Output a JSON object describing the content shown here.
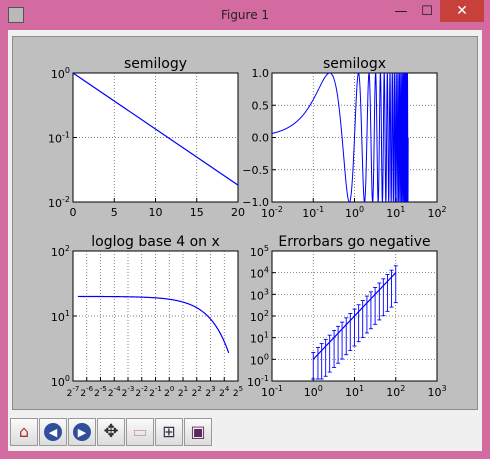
{
  "window": {
    "title": "Figure 1",
    "minimize_glyph": "—",
    "maximize_glyph": "☐",
    "close_glyph": "✕"
  },
  "toolbar": {
    "buttons": [
      {
        "name": "home",
        "icon": "home-icon",
        "glyph": "⌂"
      },
      {
        "name": "back",
        "icon": "back-arrow-icon",
        "glyph": "◀"
      },
      {
        "name": "forward",
        "icon": "forward-arrow-icon",
        "glyph": "▶"
      },
      {
        "name": "pan",
        "icon": "pan-arrows-icon",
        "glyph": "✥"
      },
      {
        "name": "zoom",
        "icon": "zoom-rect-icon",
        "glyph": "▭"
      },
      {
        "name": "subplots",
        "icon": "subplots-config-icon",
        "glyph": "⊞"
      },
      {
        "name": "save",
        "icon": "floppy-disk-icon",
        "glyph": "▣"
      }
    ]
  },
  "chart_data": [
    {
      "type": "line",
      "title": "semilogy",
      "x_scale": "linear",
      "y_scale": "log",
      "xlim": [
        0,
        20
      ],
      "ylim": [
        0.01,
        1
      ],
      "x_ticks": [
        "0",
        "5",
        "10",
        "15",
        "20"
      ],
      "y_ticks": [
        {
          "base": "10",
          "exp": "0"
        },
        {
          "base": "10",
          "exp": "-1"
        },
        {
          "base": "10",
          "exp": "-2"
        }
      ],
      "grid": true,
      "series": [
        {
          "x": [
            0,
            20
          ],
          "y": [
            1,
            0.0183
          ]
        }
      ]
    },
    {
      "type": "line",
      "title": "semilogx",
      "x_scale": "log",
      "y_scale": "linear",
      "xlim": [
        0.01,
        100
      ],
      "ylim": [
        -1,
        1
      ],
      "x_ticks": [
        {
          "base": "10",
          "exp": "-2"
        },
        {
          "base": "10",
          "exp": "-1"
        },
        {
          "base": "10",
          "exp": "0"
        },
        {
          "base": "10",
          "exp": "1"
        },
        {
          "base": "10",
          "exp": "2"
        }
      ],
      "y_ticks": [
        "1.0",
        "0.5",
        "0.0",
        "−0.5",
        "−1.0"
      ],
      "grid": true,
      "series": [
        {
          "function": "sin(2*pi*x)",
          "x_range": [
            0.01,
            20
          ]
        }
      ]
    },
    {
      "type": "line",
      "title": "loglog base 4 on x",
      "x_scale": "log4",
      "y_scale": "log",
      "xlim": [
        0.0078125,
        32
      ],
      "ylim": [
        1,
        100
      ],
      "x_ticks": [
        {
          "base": "2",
          "exp": "-7"
        },
        {
          "base": "2",
          "exp": "-6"
        },
        {
          "base": "2",
          "exp": "-5"
        },
        {
          "base": "2",
          "exp": "-4"
        },
        {
          "base": "2",
          "exp": "-3"
        },
        {
          "base": "2",
          "exp": "-2"
        },
        {
          "base": "2",
          "exp": "-1"
        },
        {
          "base": "2",
          "exp": "0"
        },
        {
          "base": "2",
          "exp": "1"
        },
        {
          "base": "2",
          "exp": "2"
        },
        {
          "base": "2",
          "exp": "3"
        },
        {
          "base": "2",
          "exp": "4"
        },
        {
          "base": "2",
          "exp": "5"
        }
      ],
      "y_ticks": [
        {
          "base": "10",
          "exp": "2"
        },
        {
          "base": "10",
          "exp": "1"
        },
        {
          "base": "10",
          "exp": "0"
        }
      ],
      "grid": true,
      "series": [
        {
          "function": "20*exp(-x/10)",
          "x_range": [
            0.01,
            20
          ]
        }
      ]
    },
    {
      "type": "scatter",
      "title": "Errorbars go negative",
      "x_scale": "log",
      "y_scale": "log",
      "xlim": [
        0.1,
        1000
      ],
      "ylim": [
        0.1,
        100000
      ],
      "x_ticks": [
        {
          "base": "10",
          "exp": "-1"
        },
        {
          "base": "10",
          "exp": "0"
        },
        {
          "base": "10",
          "exp": "1"
        },
        {
          "base": "10",
          "exp": "2"
        },
        {
          "base": "10",
          "exp": "3"
        }
      ],
      "y_ticks": [
        {
          "base": "10",
          "exp": "5"
        },
        {
          "base": "10",
          "exp": "4"
        },
        {
          "base": "10",
          "exp": "3"
        },
        {
          "base": "10",
          "exp": "2"
        },
        {
          "base": "10",
          "exp": "1"
        },
        {
          "base": "10",
          "exp": "0"
        },
        {
          "base": "10",
          "exp": "-1"
        }
      ],
      "grid": true,
      "series": [
        {
          "function": "y = x^2, yerr = 0.1*y",
          "x": [
            1,
            1.3,
            1.6,
            2,
            2.5,
            3.2,
            4,
            5,
            6.3,
            7.9,
            10,
            12.6,
            15.8,
            20,
            25,
            31.6,
            40,
            50,
            63,
            79,
            100
          ]
        }
      ]
    }
  ]
}
